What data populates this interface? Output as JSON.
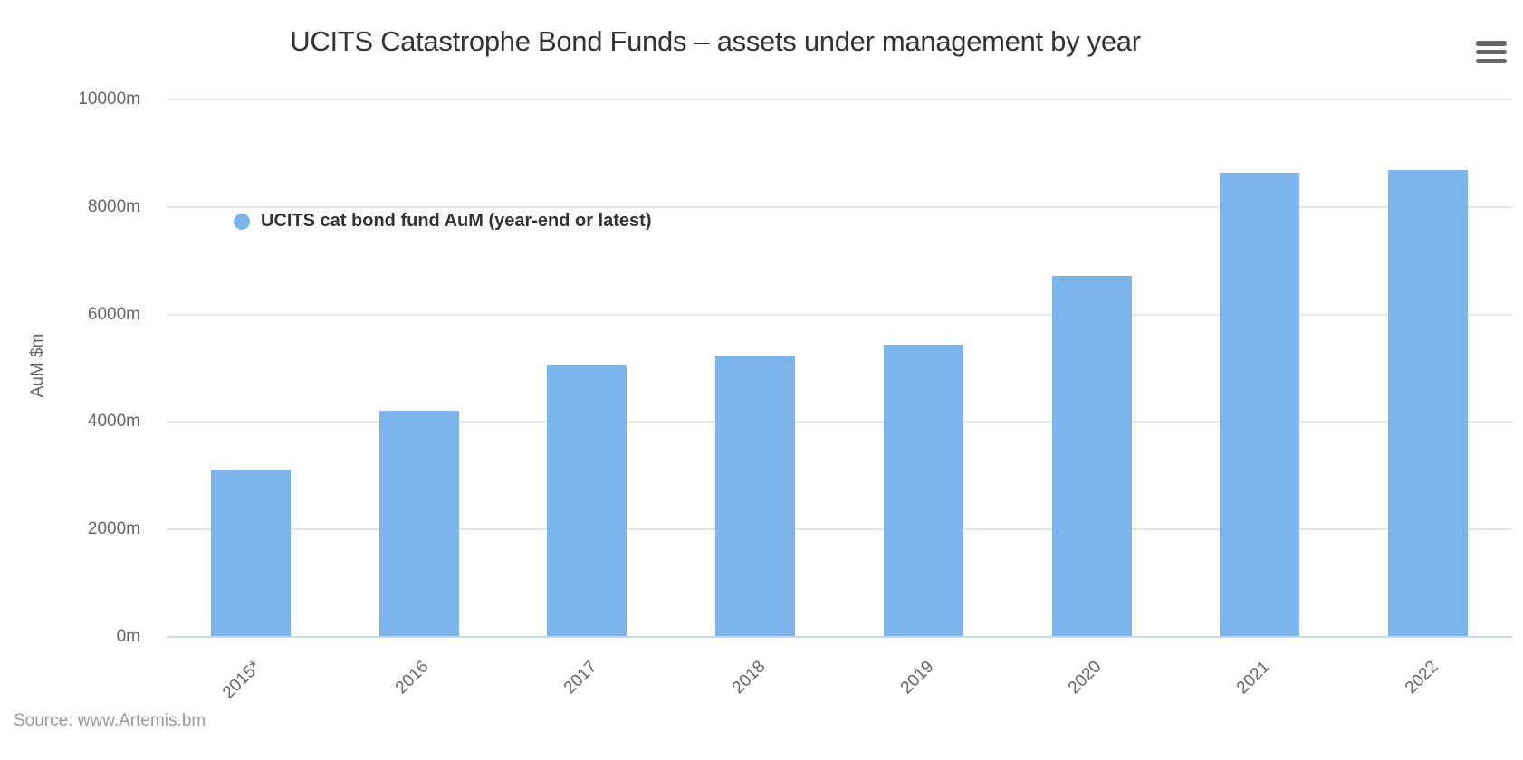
{
  "header": {
    "title": "UCITS Catastrophe Bond Funds – assets under management by year",
    "menu_icon": "hamburger-export-menu-icon"
  },
  "legend": {
    "marker_icon": "circle-marker-icon",
    "marker_color": "#7cb5ec"
  },
  "source": {
    "text": "Source: www.Artemis.bm"
  },
  "colors": {
    "bar": "#7cb5ec",
    "gridline": "#e6e6e6",
    "axis_line": "#ccd6eb",
    "title_text": "#333333",
    "axis_text": "#666666",
    "credits_text": "#999999",
    "menu_icon": "#666666"
  },
  "chart_data": {
    "type": "bar",
    "title": "UCITS Catastrophe Bond Funds – assets under management by year",
    "categories": [
      "2015*",
      "2016",
      "2017",
      "2018",
      "2019",
      "2020",
      "2021",
      "2022"
    ],
    "series": [
      {
        "name": "UCITS cat bond fund AuM (year-end or latest)",
        "values": [
          3120,
          4210,
          5070,
          5230,
          5440,
          6710,
          8640,
          8690
        ]
      }
    ],
    "xlabel": "",
    "ylabel": "AuM $m",
    "yticks": [
      "0m",
      "2000m",
      "4000m",
      "6000m",
      "8000m",
      "10000m"
    ],
    "ytick_values": [
      0,
      2000,
      4000,
      6000,
      8000,
      10000
    ],
    "ylim": [
      0,
      10000
    ],
    "grid": true,
    "bar_color": "#7cb5ec",
    "legend_position": "inside-upper-left",
    "x_label_rotation": -45
  }
}
